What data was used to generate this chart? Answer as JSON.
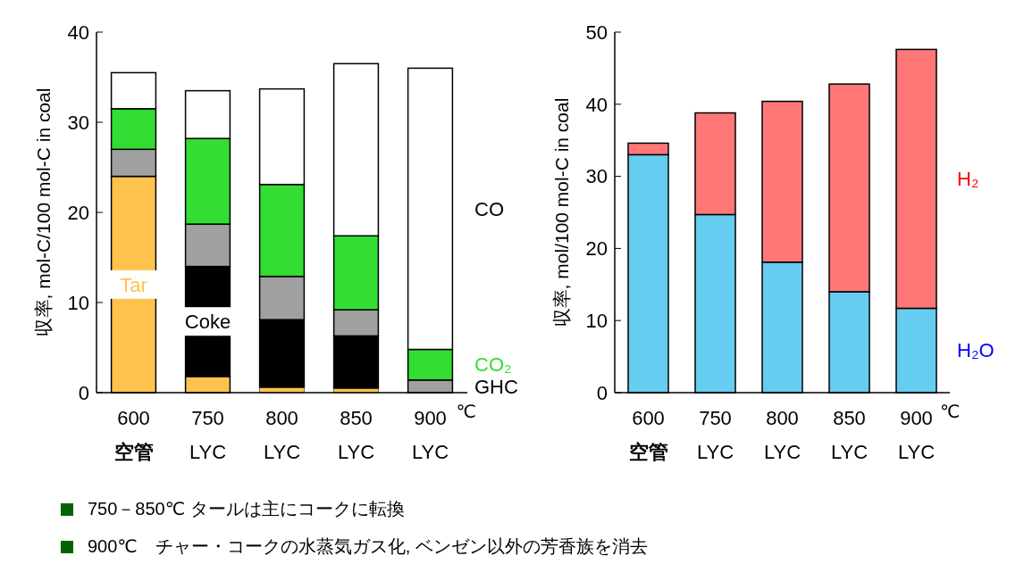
{
  "chart_data": [
    {
      "type": "bar",
      "stacked": true,
      "ylabel": "収率, mol-C/100 mol-C in coal",
      "xlabel": "℃",
      "categories": [
        "600\n空管",
        "750\nLYC",
        "800\nLYC",
        "850\nLYC",
        "900\nLYC"
      ],
      "ylim": [
        0,
        40
      ],
      "yticks": [
        0,
        10,
        20,
        30,
        40
      ],
      "series": [
        {
          "name": "Tar",
          "color": "#ffc34d",
          "values": [
            24,
            1.8,
            0.6,
            0.5,
            0
          ]
        },
        {
          "name": "Coke",
          "color": "#000000",
          "values": [
            0,
            12.2,
            7.5,
            5.8,
            0
          ]
        },
        {
          "name": "GHC",
          "color": "#a0a0a0",
          "values": [
            3,
            4.7,
            4.8,
            2.9,
            1.4
          ]
        },
        {
          "name": "CO₂",
          "color": "#33dd33",
          "values": [
            4.5,
            9.5,
            10.2,
            8.2,
            3.4
          ]
        },
        {
          "name": "CO",
          "color": "#ffffff",
          "values": [
            4,
            5.3,
            10.6,
            19.1,
            31.2
          ]
        }
      ],
      "annotations": [
        "750－850℃ タールは主にコークに転換",
        "900℃　チャー・コークの水蒸気ガス化, ベンゼン以外の芳香族を消去"
      ]
    },
    {
      "type": "bar",
      "stacked": true,
      "ylabel": "収率, mol/100 mol-C in coal",
      "xlabel": "℃",
      "categories": [
        "600\n空管",
        "750\nLYC",
        "800\nLYC",
        "850\nLYC",
        "900\nLYC"
      ],
      "ylim": [
        0,
        50
      ],
      "yticks": [
        0,
        10,
        20,
        30,
        40,
        50
      ],
      "series": [
        {
          "name": "H₂O",
          "color": "#66ccf0",
          "values": [
            33,
            24.7,
            18.1,
            14,
            11.7
          ]
        },
        {
          "name": "H₂",
          "color": "#ff7777",
          "values": [
            1.6,
            14.1,
            22.3,
            28.8,
            35.9
          ]
        }
      ]
    }
  ]
}
